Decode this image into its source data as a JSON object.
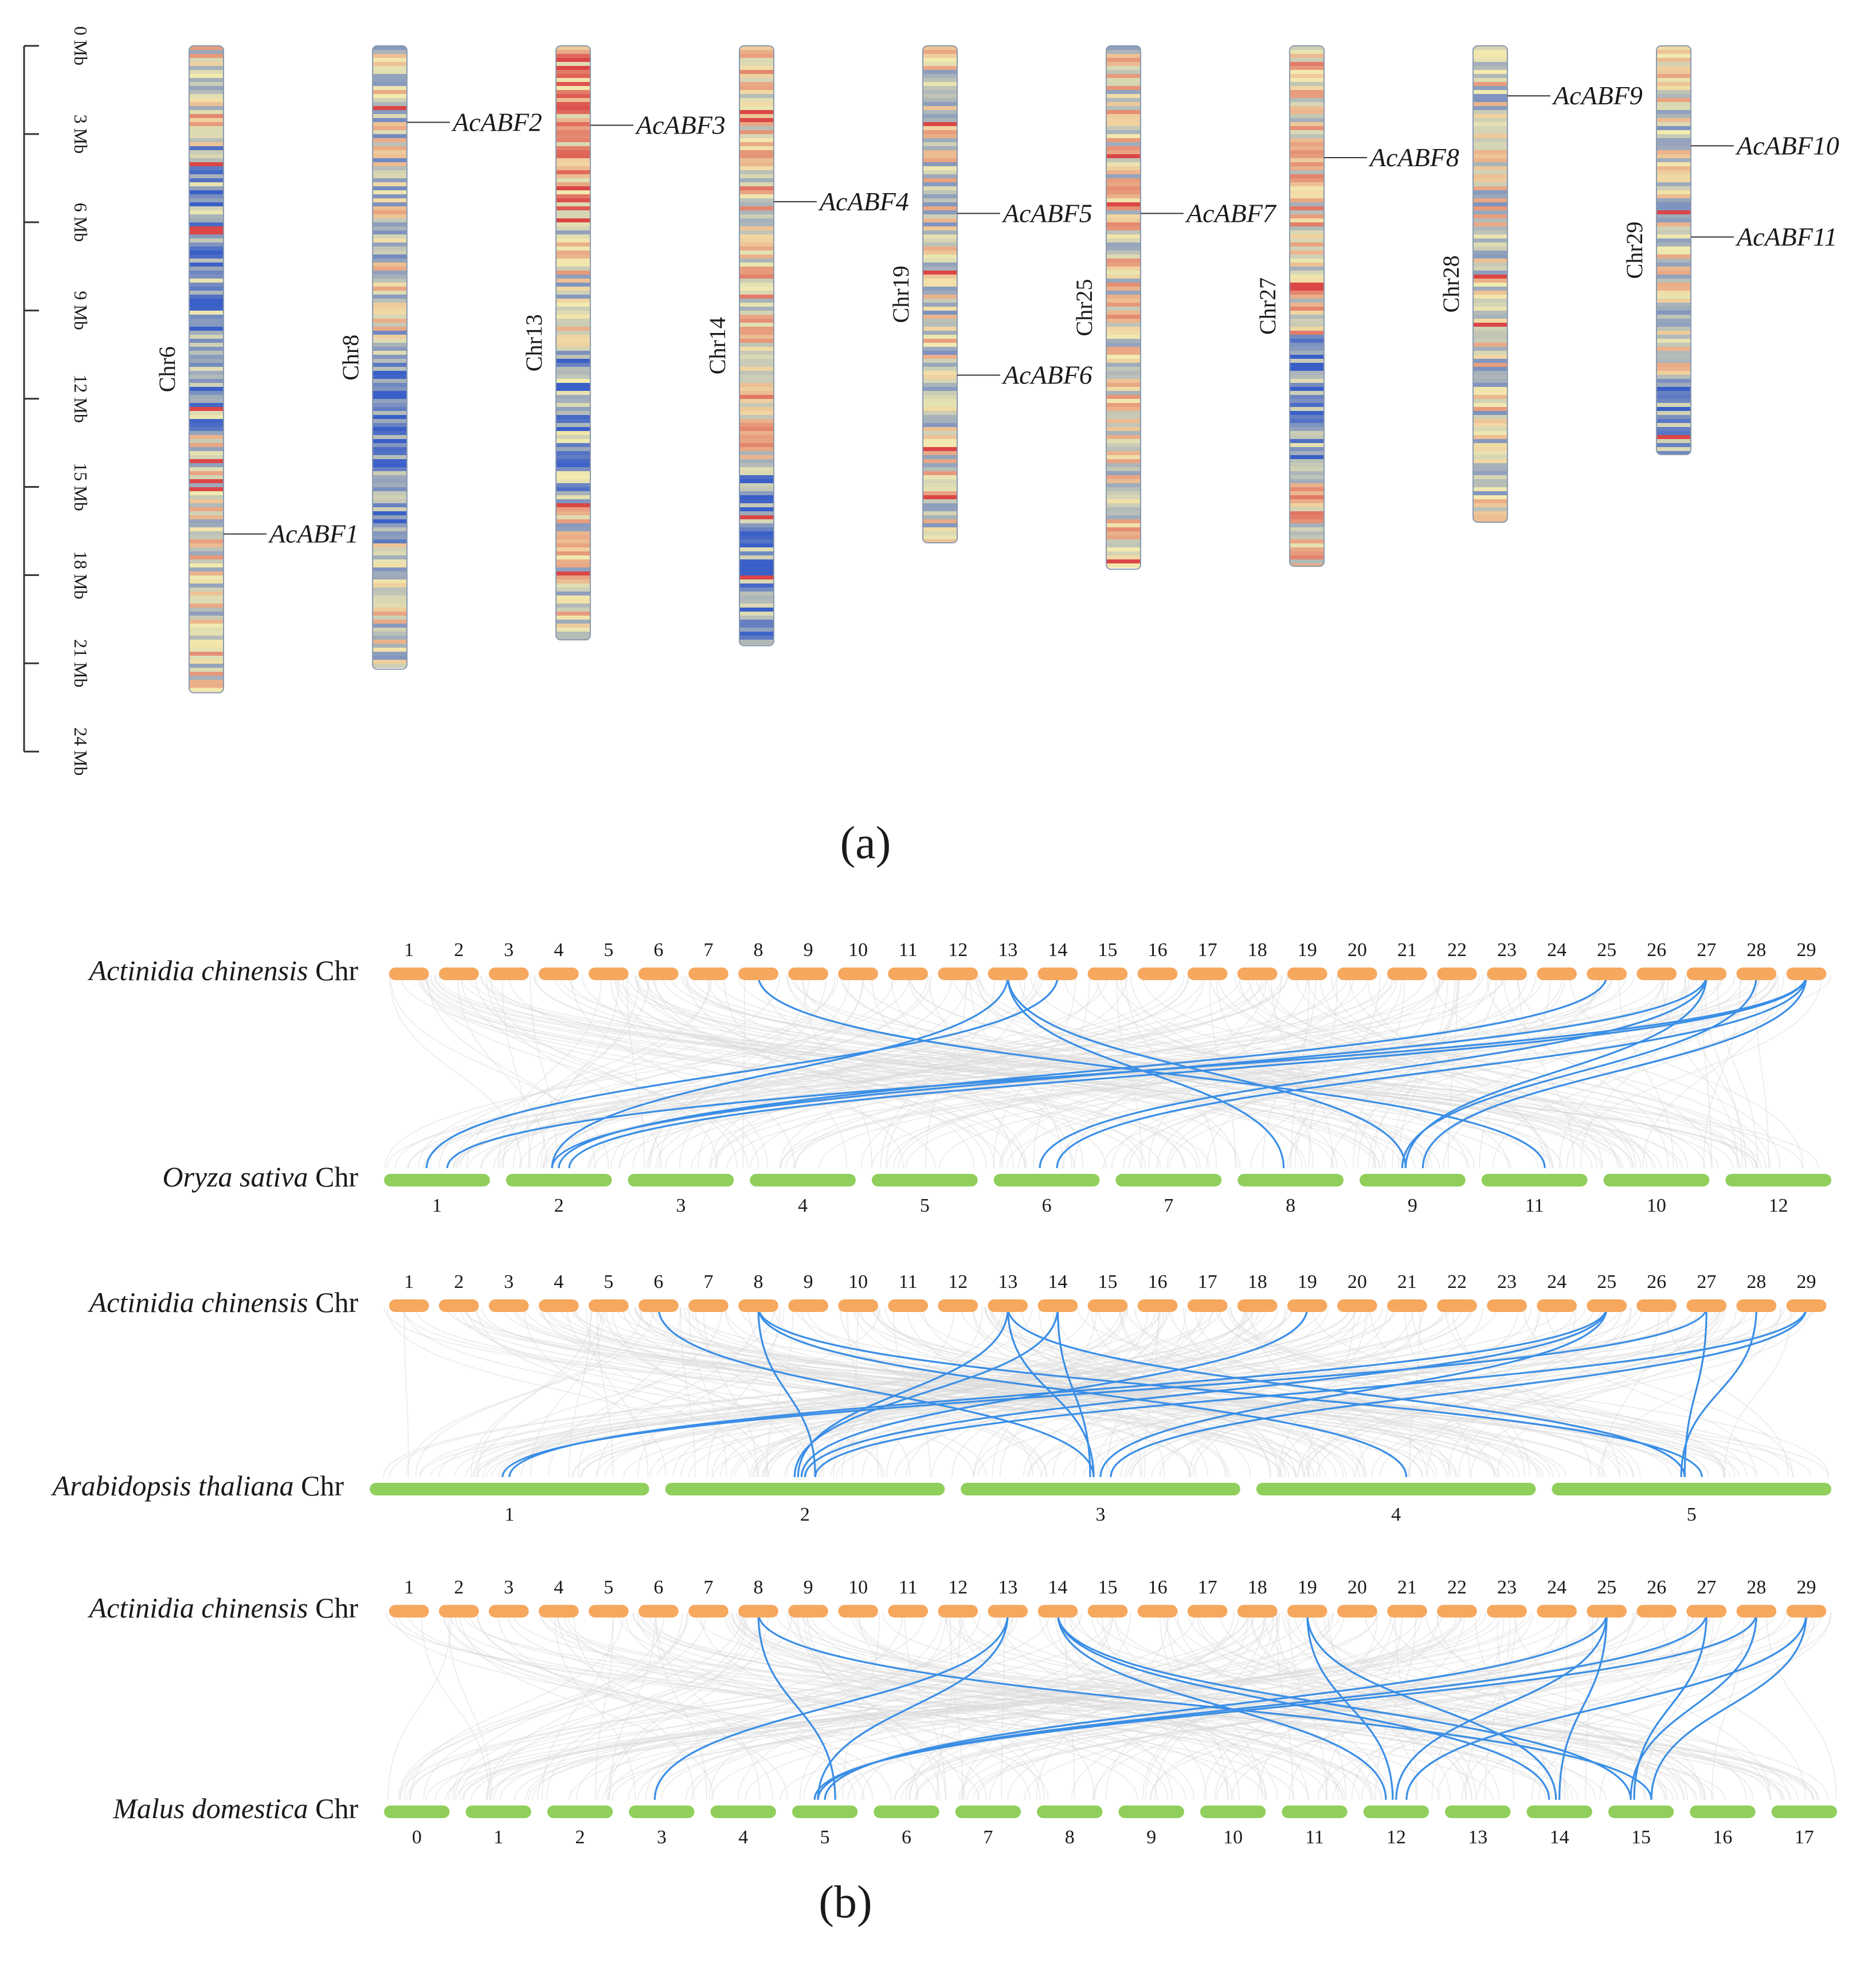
{
  "colors": {
    "actinidia_bar": "#f5a85e",
    "target_bar": "#90cf5c",
    "highlight_link": "#3a8ee6",
    "background_link": "#d9d9d9",
    "density_low": "#3a5fc8",
    "density_mid": "#f3ebb0",
    "density_high": "#d8343a"
  },
  "panel_a": {
    "label": "(a)",
    "scale_unit": "Mb",
    "scale_max": 24,
    "scale_ticks": [
      "0 Mb",
      "3 Mb",
      "6 Mb",
      "9 Mb",
      "12 Mb",
      "15 Mb",
      "18 Mb",
      "21 Mb",
      "24 Mb"
    ],
    "chromosomes": [
      {
        "name": "Chr6",
        "length_mb": 22.0,
        "genes": [
          {
            "name": "AcABF1",
            "pos_mb": 16.6
          }
        ]
      },
      {
        "name": "Chr8",
        "length_mb": 21.2,
        "genes": [
          {
            "name": "AcABF2",
            "pos_mb": 2.6
          }
        ]
      },
      {
        "name": "Chr13",
        "length_mb": 20.2,
        "genes": [
          {
            "name": "AcABF3",
            "pos_mb": 2.7
          }
        ]
      },
      {
        "name": "Chr14",
        "length_mb": 20.4,
        "genes": [
          {
            "name": "AcABF4",
            "pos_mb": 5.3
          }
        ]
      },
      {
        "name": "Chr19",
        "length_mb": 16.9,
        "genes": [
          {
            "name": "AcABF5",
            "pos_mb": 5.7
          },
          {
            "name": "AcABF6",
            "pos_mb": 11.2
          }
        ]
      },
      {
        "name": "Chr25",
        "length_mb": 17.8,
        "genes": [
          {
            "name": "AcABF7",
            "pos_mb": 5.7
          }
        ]
      },
      {
        "name": "Chr27",
        "length_mb": 17.7,
        "genes": [
          {
            "name": "AcABF8",
            "pos_mb": 3.8
          }
        ]
      },
      {
        "name": "Chr28",
        "length_mb": 16.2,
        "genes": [
          {
            "name": "AcABF9",
            "pos_mb": 1.7
          }
        ]
      },
      {
        "name": "Chr29",
        "length_mb": 13.9,
        "genes": [
          {
            "name": "AcABF10",
            "pos_mb": 3.4
          },
          {
            "name": "AcABF11",
            "pos_mb": 6.5
          }
        ]
      }
    ]
  },
  "panel_b": {
    "label": "(b)",
    "top_species": {
      "genus": "Actinidia chinensis",
      "suffix": "Chr"
    },
    "top_chromosomes": [
      "1",
      "2",
      "3",
      "4",
      "5",
      "6",
      "7",
      "8",
      "9",
      "10",
      "11",
      "12",
      "13",
      "14",
      "15",
      "16",
      "17",
      "18",
      "19",
      "20",
      "21",
      "22",
      "23",
      "24",
      "25",
      "26",
      "27",
      "28",
      "29"
    ],
    "comparisons": [
      {
        "species": "Oryza sativa",
        "suffix": "Chr",
        "chromosomes": [
          "1",
          "2",
          "3",
          "4",
          "5",
          "6",
          "7",
          "8",
          "9",
          "11",
          "10",
          "12"
        ],
        "links": [
          [
            8,
            9
          ],
          [
            13,
            1
          ],
          [
            13,
            8
          ],
          [
            14,
            0
          ],
          [
            25,
            1
          ],
          [
            27,
            5
          ],
          [
            27,
            1
          ],
          [
            27,
            8
          ],
          [
            28,
            8
          ],
          [
            29,
            0
          ],
          [
            29,
            1
          ],
          [
            29,
            5
          ],
          [
            29,
            8
          ],
          [
            13,
            7
          ]
        ]
      },
      {
        "species": "Arabidopsis thaliana",
        "suffix": "Chr",
        "chromosomes": [
          "1",
          "2",
          "3",
          "4",
          "5"
        ],
        "links": [
          [
            6,
            2
          ],
          [
            8,
            1
          ],
          [
            8,
            3
          ],
          [
            8,
            4
          ],
          [
            13,
            2
          ],
          [
            13,
            1
          ],
          [
            14,
            2
          ],
          [
            14,
            1
          ],
          [
            19,
            1
          ],
          [
            25,
            0
          ],
          [
            25,
            1
          ],
          [
            25,
            2
          ],
          [
            27,
            0
          ],
          [
            27,
            4
          ],
          [
            28,
            4
          ],
          [
            29,
            1
          ],
          [
            29,
            2
          ],
          [
            13,
            4
          ]
        ]
      },
      {
        "species": "Malus domestica",
        "suffix": "Chr",
        "chromosomes": [
          "0",
          "1",
          "2",
          "3",
          "4",
          "5",
          "6",
          "7",
          "8",
          "9",
          "10",
          "11",
          "12",
          "13",
          "14",
          "15",
          "16",
          "17"
        ],
        "links": [
          [
            8,
            5
          ],
          [
            8,
            15
          ],
          [
            13,
            3
          ],
          [
            13,
            5
          ],
          [
            14,
            12
          ],
          [
            14,
            14
          ],
          [
            14,
            15
          ],
          [
            19,
            12
          ],
          [
            19,
            14
          ],
          [
            25,
            5
          ],
          [
            25,
            12
          ],
          [
            25,
            14
          ],
          [
            27,
            5
          ],
          [
            27,
            15
          ],
          [
            28,
            5
          ],
          [
            28,
            15
          ],
          [
            29,
            12
          ],
          [
            29,
            15
          ]
        ]
      }
    ]
  }
}
